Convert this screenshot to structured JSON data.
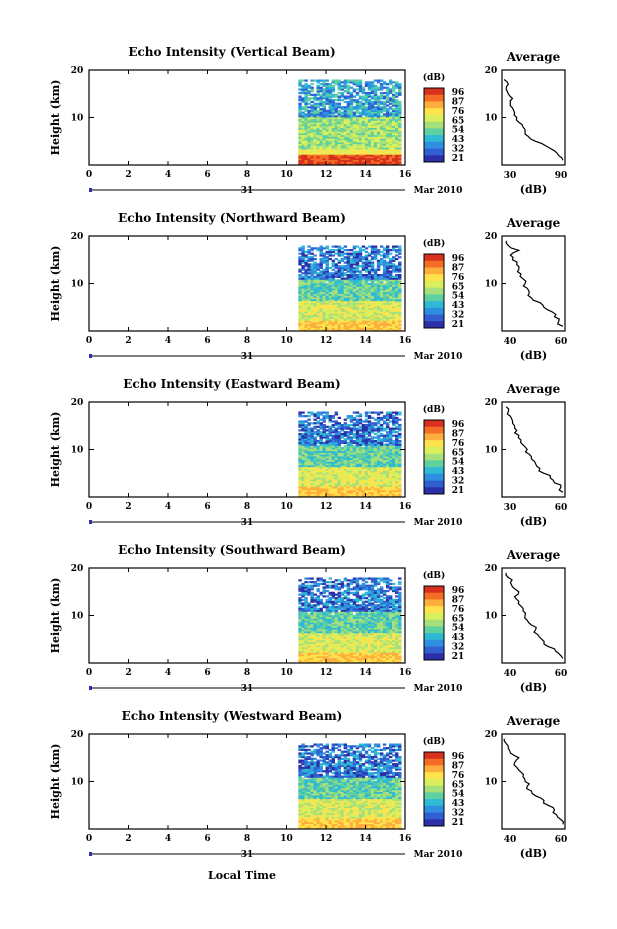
{
  "figure": {
    "xlabel": "Local Time",
    "date_label": "Mar 2010",
    "day_label": "31",
    "colorbar_unit": "(dB)",
    "colorbar_ticks": [
      "96",
      "87",
      "76",
      "65",
      "54",
      "43",
      "32",
      "21"
    ],
    "colorbar_colors": [
      "#d7301f",
      "#f46d25",
      "#fdae3d",
      "#fee34d",
      "#d9ef5b",
      "#a6e07a",
      "#5fd0a0",
      "#2fb9d4",
      "#2e8fe0",
      "#2f5fd0",
      "#2b2fa8"
    ]
  },
  "chart_data": [
    {
      "type": "heatmap",
      "title": "Echo Intensity (Vertical Beam)",
      "ylabel": "Height (km)",
      "xlim": [
        0,
        16
      ],
      "ylim": [
        0,
        20
      ],
      "xticks": [
        "0",
        "2",
        "4",
        "6",
        "8",
        "10",
        "12",
        "14",
        "16"
      ],
      "yticks": [
        "10",
        "20"
      ],
      "data_x_range": [
        10.6,
        15.8
      ],
      "data_top_km": 18,
      "profile": {
        "title": "Average",
        "xlabel": "(dB)",
        "xlim": [
          30,
          90
        ],
        "xticks": [
          "30",
          "90"
        ],
        "yticks": [
          "10",
          "20"
        ],
        "heights": [
          1,
          2,
          3,
          4,
          5,
          6,
          7,
          8,
          9,
          10,
          11,
          12,
          13,
          14,
          15,
          16,
          17,
          18
        ],
        "values": [
          88,
          84,
          80,
          72,
          62,
          55,
          52,
          50,
          46,
          44,
          42,
          40,
          38,
          40,
          36,
          34,
          36,
          32
        ]
      }
    },
    {
      "type": "heatmap",
      "title": "Echo Intensity (Northward Beam)",
      "ylabel": "Height (km)",
      "xlim": [
        0,
        16
      ],
      "ylim": [
        0,
        20
      ],
      "xticks": [
        "0",
        "2",
        "4",
        "6",
        "8",
        "10",
        "12",
        "14",
        "16"
      ],
      "yticks": [
        "10",
        "20"
      ],
      "data_x_range": [
        10.6,
        15.8
      ],
      "data_top_km": 18,
      "profile": {
        "title": "Average",
        "xlabel": "(dB)",
        "xlim": [
          30,
          60
        ],
        "xticks": [
          "40",
          "60"
        ],
        "yticks": [
          "10",
          "20"
        ],
        "heights": [
          1,
          2,
          3,
          4,
          5,
          6,
          7,
          8,
          9,
          10,
          11,
          12,
          13,
          14,
          15,
          16,
          17,
          18,
          19
        ],
        "values": [
          59,
          57,
          55,
          54,
          50,
          48,
          44,
          43,
          42,
          41,
          40,
          39,
          38,
          37,
          35,
          34,
          38,
          33,
          32
        ]
      }
    },
    {
      "type": "heatmap",
      "title": "Echo Intensity (Eastward Beam)",
      "ylabel": "Height (km)",
      "xlim": [
        0,
        16
      ],
      "ylim": [
        0,
        20
      ],
      "xticks": [
        "0",
        "2",
        "4",
        "6",
        "8",
        "10",
        "12",
        "14",
        "16"
      ],
      "yticks": [
        "10",
        "20"
      ],
      "data_x_range": [
        10.6,
        15.8
      ],
      "data_top_km": 18,
      "profile": {
        "title": "Average",
        "xlabel": "(dB)",
        "xlim": [
          30,
          60
        ],
        "xticks": [
          "30",
          "60"
        ],
        "yticks": [
          "10",
          "20"
        ],
        "heights": [
          1,
          2,
          3,
          4,
          5,
          6,
          7,
          8,
          9,
          10,
          11,
          12,
          13,
          14,
          15,
          16,
          17,
          18,
          19
        ],
        "values": [
          59,
          58,
          55,
          53,
          50,
          48,
          46,
          44,
          43,
          42,
          40,
          39,
          38,
          37,
          36,
          35,
          34,
          33,
          32
        ]
      }
    },
    {
      "type": "heatmap",
      "title": "Echo Intensity (Southward Beam)",
      "ylabel": "Height (km)",
      "xlim": [
        0,
        16
      ],
      "ylim": [
        0,
        20
      ],
      "xticks": [
        "0",
        "2",
        "4",
        "6",
        "8",
        "10",
        "12",
        "14",
        "16"
      ],
      "yticks": [
        "10",
        "20"
      ],
      "data_x_range": [
        10.6,
        15.8
      ],
      "data_top_km": 18,
      "profile": {
        "title": "Average",
        "xlabel": "(dB)",
        "xlim": [
          30,
          60
        ],
        "xticks": [
          "40",
          "60"
        ],
        "yticks": [
          "10",
          "20"
        ],
        "heights": [
          1,
          2,
          3,
          4,
          5,
          6,
          7,
          8,
          9,
          10,
          11,
          12,
          13,
          14,
          15,
          16,
          17,
          18,
          19
        ],
        "values": [
          59,
          57,
          55,
          50,
          49,
          47,
          46,
          44,
          42,
          41,
          40,
          39,
          38,
          36,
          38,
          35,
          34,
          33,
          32
        ]
      }
    },
    {
      "type": "heatmap",
      "title": "Echo Intensity (Westward Beam)",
      "ylabel": "Height (km)",
      "xlim": [
        0,
        16
      ],
      "ylim": [
        0,
        20
      ],
      "xticks": [
        "0",
        "2",
        "4",
        "6",
        "8",
        "10",
        "12",
        "14",
        "16"
      ],
      "yticks": [
        "10",
        "20"
      ],
      "data_x_range": [
        10.6,
        15.8
      ],
      "data_top_km": 18,
      "profile": {
        "title": "Average",
        "xlabel": "(dB)",
        "xlim": [
          30,
          60
        ],
        "xticks": [
          "40",
          "60"
        ],
        "yticks": [
          "10",
          "20"
        ],
        "heights": [
          1,
          2,
          3,
          4,
          5,
          6,
          7,
          8,
          9,
          10,
          11,
          12,
          13,
          14,
          15,
          16,
          17,
          18,
          19
        ],
        "values": [
          59,
          58,
          56,
          55,
          52,
          50,
          46,
          44,
          42,
          41,
          40,
          39,
          37,
          36,
          38,
          34,
          33,
          32,
          31
        ]
      }
    }
  ]
}
